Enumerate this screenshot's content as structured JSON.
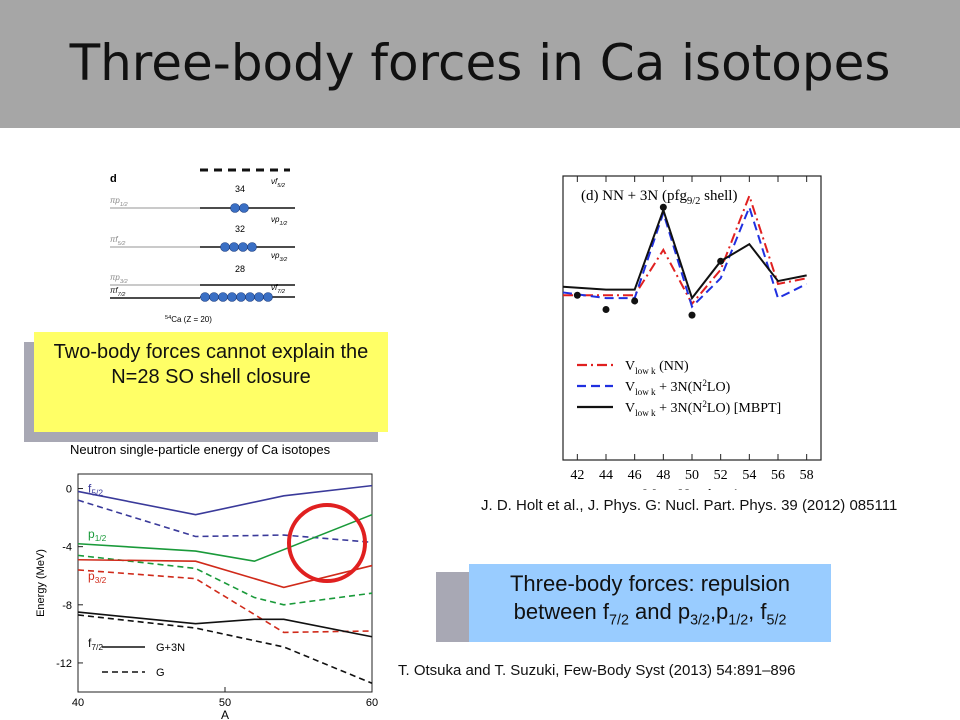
{
  "title": "Three-body forces in Ca isotopes",
  "callout_two_body": "Two-body forces cannot explain the N=28 SO shell closure",
  "callout_three_body": {
    "prefix": "Three-body forces: repulsion between f",
    "s1": "7/2",
    "and": " and p",
    "s2": "3/2",
    "comma1": ",p",
    "s3": "1/2",
    "comma2": ", f",
    "s4": "5/2"
  },
  "ref_holt": "J. D. Holt et al., J. Phys. G: Nucl. Part. Phys. 39 (2012) 085111",
  "ref_otsuka": "T. Otsuka and T. Suzuki,  Few-Body Syst (2013) 54:891–896",
  "shell_fig": {
    "panel": "d",
    "ca": "Ca (Z = 20)",
    "ca_mass": "54",
    "numbers": [
      "34",
      "32",
      "28"
    ],
    "left": [
      {
        "base": "πp",
        "sub": "1/2"
      },
      {
        "base": "πf",
        "sub": "5/2"
      },
      {
        "base": "πp",
        "sub": "3/2"
      },
      {
        "base": "πf",
        "sub": "7/2"
      }
    ],
    "right": [
      {
        "base": "νf",
        "sub": "5/2"
      },
      {
        "base": "νp",
        "sub": "1/2"
      },
      {
        "base": "νp",
        "sub": "3/2"
      },
      {
        "base": "νf",
        "sub": "7/2"
      }
    ]
  },
  "chart_data": [
    {
      "type": "line",
      "title": "Neutron single-particle energy of Ca isotopes",
      "xlabel": "A",
      "ylabel": "Energy (MeV)",
      "xlim": [
        40,
        60
      ],
      "ylim": [
        -14,
        1
      ],
      "xticks": [
        40,
        50,
        60
      ],
      "yticks": [
        0,
        -4,
        -8,
        -12
      ],
      "legend": [
        {
          "name": "G+3N",
          "style": "solid"
        },
        {
          "name": "G",
          "style": "dashed"
        }
      ],
      "level_labels": [
        {
          "base": "f",
          "sub": "5/2",
          "color": "#3a3a9a"
        },
        {
          "base": "p",
          "sub": "1/2",
          "color": "#1a9a3a"
        },
        {
          "base": "p",
          "sub": "3/2",
          "color": "#d02a1a"
        },
        {
          "base": "f",
          "sub": "7/2",
          "color": "#111111"
        }
      ],
      "series": [
        {
          "level": "f5/2",
          "force": "G+3N",
          "color": "#3a3a9a",
          "dash": false,
          "x": [
            40,
            48,
            54,
            60
          ],
          "y": [
            -0.2,
            -1.8,
            -0.5,
            0.2
          ]
        },
        {
          "level": "f5/2",
          "force": "G",
          "color": "#3a3a9a",
          "dash": true,
          "x": [
            40,
            48,
            54,
            60
          ],
          "y": [
            -0.8,
            -3.3,
            -3.2,
            -3.7
          ]
        },
        {
          "level": "p1/2",
          "force": "G+3N",
          "color": "#1a9a3a",
          "dash": false,
          "x": [
            40,
            48,
            52,
            60
          ],
          "y": [
            -3.8,
            -4.3,
            -5.0,
            -1.8
          ]
        },
        {
          "level": "p1/2",
          "force": "G",
          "color": "#1a9a3a",
          "dash": true,
          "x": [
            40,
            48,
            52,
            54,
            60
          ],
          "y": [
            -4.6,
            -5.5,
            -7.5,
            -8.0,
            -7.2
          ]
        },
        {
          "level": "p3/2",
          "force": "G+3N",
          "color": "#d02a1a",
          "dash": false,
          "x": [
            40,
            48,
            54,
            60
          ],
          "y": [
            -4.9,
            -5.0,
            -6.8,
            -5.3
          ]
        },
        {
          "level": "p3/2",
          "force": "G",
          "color": "#d02a1a",
          "dash": true,
          "x": [
            40,
            48,
            54,
            60
          ],
          "y": [
            -5.6,
            -6.2,
            -9.9,
            -9.8
          ]
        },
        {
          "level": "f7/2",
          "force": "G+3N",
          "color": "#111111",
          "dash": false,
          "x": [
            40,
            48,
            52,
            54,
            60
          ],
          "y": [
            -8.5,
            -9.3,
            -9.0,
            -9.0,
            -10.2
          ]
        },
        {
          "level": "f7/2",
          "force": "G",
          "color": "#111111",
          "dash": true,
          "x": [
            40,
            48,
            54,
            60
          ],
          "y": [
            -8.7,
            -9.6,
            -10.9,
            -13.4
          ]
        }
      ]
    },
    {
      "type": "line",
      "title": "(d) NN + 3N (pfg",
      "title_sub": "9/2",
      "title_suffix": " shell)",
      "xlabel": "Mass Number A",
      "xlim": [
        41,
        59
      ],
      "xticks": [
        42,
        44,
        46,
        48,
        50,
        52,
        54,
        56,
        58
      ],
      "ylim": [
        0,
        1
      ],
      "series": [
        {
          "name": "V(NN)",
          "label": {
            "base": "V",
            "sub": "low k",
            "rest": " (NN)"
          },
          "color": "#e02020",
          "style": "dashdot",
          "x": [
            41,
            44,
            46,
            48,
            50,
            52,
            54,
            56,
            58
          ],
          "y": [
            0.58,
            0.58,
            0.58,
            0.74,
            0.55,
            0.67,
            0.93,
            0.62,
            0.64
          ]
        },
        {
          "name": "V+3N",
          "label": {
            "base": "V",
            "sub": "low k",
            "rest": " + 3N(N",
            "sup": "2",
            "rest2": "LO)"
          },
          "color": "#2030e0",
          "style": "dashed",
          "x": [
            41,
            44,
            46,
            48,
            50,
            52,
            54,
            56,
            58
          ],
          "y": [
            0.59,
            0.57,
            0.57,
            0.87,
            0.54,
            0.64,
            0.89,
            0.57,
            0.62
          ]
        },
        {
          "name": "V+3N MBPT",
          "label": {
            "base": "V",
            "sub": "low k",
            "rest": " + 3N(N",
            "sup": "2",
            "rest2": "LO) [MBPT]"
          },
          "color": "#111111",
          "style": "solid",
          "x": [
            41,
            44,
            46,
            48,
            50,
            52,
            54,
            56,
            58
          ],
          "y": [
            0.61,
            0.6,
            0.6,
            0.88,
            0.57,
            0.7,
            0.76,
            0.63,
            0.65
          ]
        }
      ],
      "experiment": {
        "x": [
          42,
          44,
          46,
          48,
          50,
          52
        ],
        "y": [
          0.58,
          0.53,
          0.56,
          0.89,
          0.51,
          0.7
        ]
      }
    }
  ]
}
